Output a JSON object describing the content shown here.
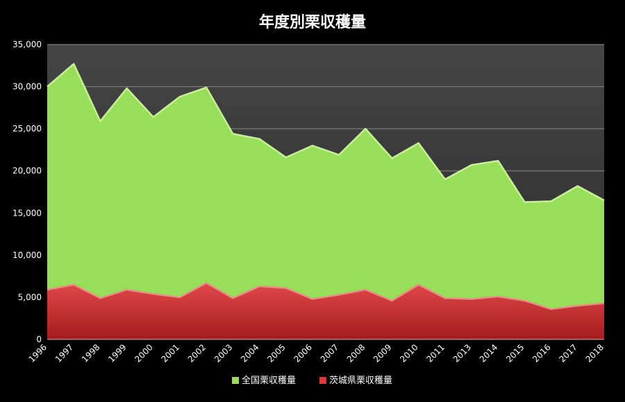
{
  "chart_data": {
    "type": "area",
    "title": "年度別栗収穫量",
    "xlabel": "",
    "ylabel": "",
    "x": [
      "1996",
      "1997",
      "1998",
      "1999",
      "2000",
      "2001",
      "2002",
      "2003",
      "2004",
      "2005",
      "2006",
      "2007",
      "2008",
      "2009",
      "2010",
      "2011",
      "2013",
      "2014",
      "2015",
      "2016",
      "2017",
      "2018"
    ],
    "ylim": [
      0,
      35000
    ],
    "yticks": [
      "0",
      "5,000",
      "10,000",
      "15,000",
      "20,000",
      "25,000",
      "30,000",
      "35,000"
    ],
    "grid": true,
    "legend_position": "bottom",
    "series": [
      {
        "name": "全国栗収穫量",
        "color": "#99de5a",
        "values": [
          30000,
          32700,
          25900,
          29800,
          26400,
          28800,
          29900,
          24400,
          23800,
          21600,
          23000,
          21900,
          25000,
          21500,
          23300,
          19000,
          20700,
          21200,
          16300,
          16400,
          18200,
          16500
        ]
      },
      {
        "name": "茨城県栗収穫量",
        "color": "#d93a3a",
        "values": [
          5900,
          6500,
          4900,
          5900,
          5400,
          5000,
          6700,
          4900,
          6300,
          6100,
          4800,
          5300,
          5900,
          4600,
          6500,
          4900,
          4800,
          5100,
          4600,
          3600,
          4000,
          4300
        ]
      }
    ]
  }
}
